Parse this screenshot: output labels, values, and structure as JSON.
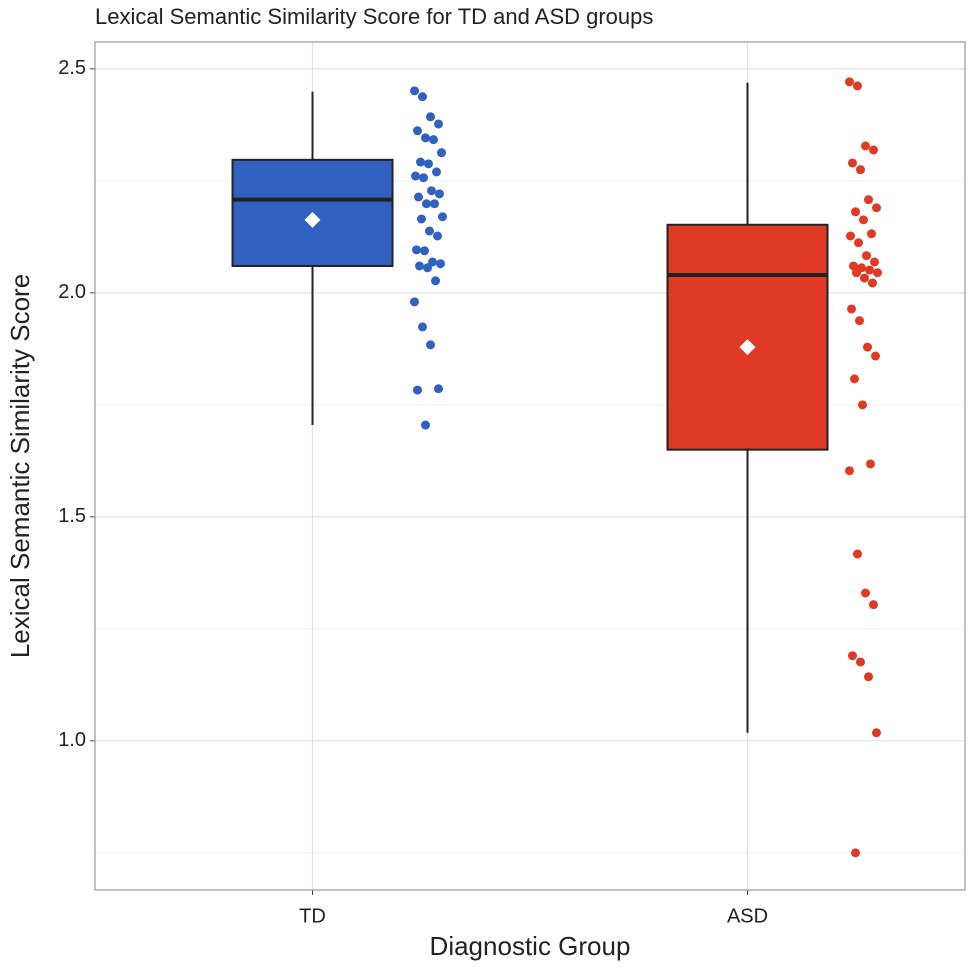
{
  "chart_data": {
    "type": "boxplot",
    "title": "Lexical Semantic Similarity Score for TD and ASD groups",
    "x_label": "Diagnostic Group",
    "y_label": "Lexical Semantic Similarity Score",
    "categories": [
      "TD",
      "ASD"
    ],
    "groups": [
      {
        "color": "#3061c0",
        "whisker_low": 1.705,
        "q1": 2.06,
        "median": 2.208,
        "q3": 2.297,
        "whisker_high": 2.449,
        "mean": 2.163,
        "points": [
          2.451,
          2.438,
          2.393,
          2.377,
          2.362,
          2.346,
          2.342,
          2.313,
          2.292,
          2.288,
          2.27,
          2.261,
          2.257,
          2.228,
          2.221,
          2.214,
          2.199,
          2.199,
          2.17,
          2.165,
          2.138,
          2.127,
          2.096,
          2.094,
          2.069,
          2.065,
          2.06,
          2.056,
          2.027,
          1.98,
          1.924,
          1.884,
          1.786,
          1.783,
          1.705
        ]
      },
      {
        "color": "#e03a25",
        "whisker_low": 1.018,
        "q1": 1.65,
        "median": 2.04,
        "q3": 2.152,
        "whisker_high": 2.469,
        "mean": 1.879,
        "points": [
          2.471,
          2.462,
          2.328,
          2.319,
          2.29,
          2.275,
          2.208,
          2.19,
          2.181,
          2.163,
          2.132,
          2.127,
          2.112,
          2.083,
          2.069,
          2.06,
          2.056,
          2.051,
          2.045,
          2.045,
          2.033,
          2.022,
          1.964,
          1.938,
          1.879,
          1.859,
          1.808,
          1.75,
          1.618,
          1.603,
          1.417,
          1.33,
          1.304,
          1.19,
          1.176,
          1.143,
          1.018,
          0.75
        ]
      }
    ],
    "ylim": [
      0.667,
      2.56
    ],
    "yticks": [
      {
        "value": 1,
        "label": "1.0"
      },
      1.5,
      {
        "value": 2,
        "label": "2.0"
      },
      2.5
    ],
    "minor_yticks": [
      0.75,
      1.25,
      1.75,
      2.25
    ],
    "grid": true
  }
}
